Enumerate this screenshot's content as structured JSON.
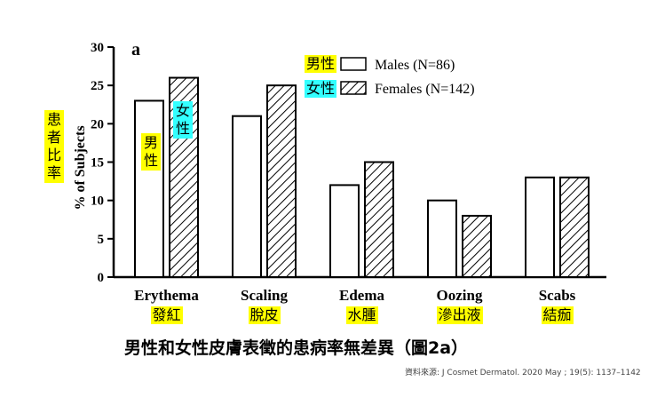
{
  "chart_data": {
    "type": "bar",
    "panel_label": "a",
    "ylabel": "% of Subjects",
    "ylim": [
      0,
      30
    ],
    "yticks": [
      "0",
      "5",
      "10",
      "15",
      "20",
      "25",
      "30"
    ],
    "categories": [
      "Erythema",
      "Scaling",
      "Edema",
      "Oozing",
      "Scabs"
    ],
    "categories_zh": [
      "發紅",
      "脫皮",
      "水腫",
      "滲出液",
      "結痂"
    ],
    "series": [
      {
        "name": "Males (N=86)",
        "name_zh": "男性",
        "pattern": "open",
        "values": [
          23,
          21,
          12,
          10,
          13
        ]
      },
      {
        "name": "Females (N=142)",
        "name_zh": "女性",
        "pattern": "hatched",
        "values": [
          26,
          25,
          15,
          8,
          13
        ]
      }
    ]
  },
  "annotations": {
    "ylabel_zh": "患者比率",
    "male_bar_note": "男性",
    "female_bar_note": "女性"
  },
  "caption": "男性和女性皮膚表徵的患病率無差異（圖2a）",
  "source": "資料來源: J Cosmet Dermatol. 2020 May ; 19(5): 1137–1142"
}
